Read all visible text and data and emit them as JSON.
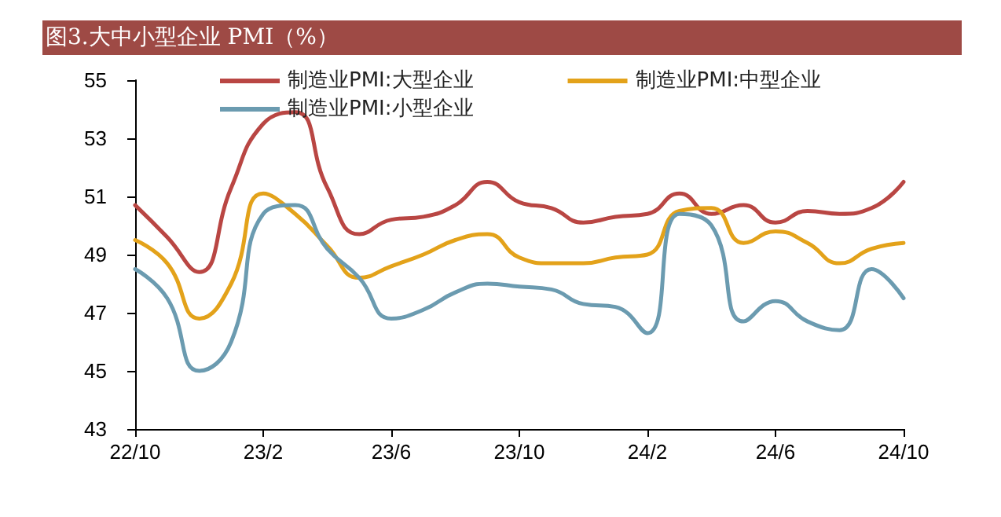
{
  "chart_data": {
    "type": "line",
    "title": "图3.大中小型企业 PMI（%）",
    "categories": [
      "22/10",
      null,
      null,
      null,
      "23/2",
      null,
      null,
      null,
      "23/6",
      null,
      null,
      null,
      "23/10",
      null,
      null,
      null,
      "24/2",
      null,
      null,
      null,
      "24/6",
      null,
      null,
      null,
      "24/10"
    ],
    "series": [
      {
        "name": "制造业PMI:大型企业",
        "color": "#b94643",
        "values": [
          50.7,
          49.6,
          48.4,
          51.3,
          53.5,
          53.9,
          51.3,
          49.7,
          50.2,
          50.3,
          50.7,
          51.5,
          50.8,
          50.6,
          50.1,
          50.3,
          50.4,
          51.1,
          50.4,
          50.7,
          50.1,
          50.5,
          50.4,
          50.6,
          51.5
        ]
      },
      {
        "name": "制造业PMI:中型企业",
        "color": "#e3a21a",
        "values": [
          49.5,
          48.7,
          46.8,
          48.0,
          51.1,
          50.4,
          49.3,
          48.2,
          48.6,
          49.0,
          49.5,
          49.7,
          48.9,
          48.7,
          48.7,
          48.9,
          49.0,
          50.5,
          50.6,
          49.4,
          49.8,
          49.4,
          48.7,
          49.2,
          49.4
        ]
      },
      {
        "name": "制造业PMI:小型企业",
        "color": "#6b9bb0",
        "values": [
          48.5,
          47.5,
          45.0,
          46.0,
          50.4,
          50.7,
          49.2,
          48.2,
          46.8,
          47.1,
          47.7,
          48.0,
          47.9,
          47.8,
          47.3,
          47.2,
          46.3,
          50.4,
          50.0,
          46.7,
          47.4,
          46.7,
          46.4,
          48.5,
          47.5
        ]
      }
    ],
    "ylim": [
      43,
      55
    ],
    "yticks": [
      43,
      45,
      47,
      49,
      51,
      53,
      55
    ],
    "grid": false,
    "legend": "top",
    "marker": "none",
    "line_style": "solid"
  }
}
